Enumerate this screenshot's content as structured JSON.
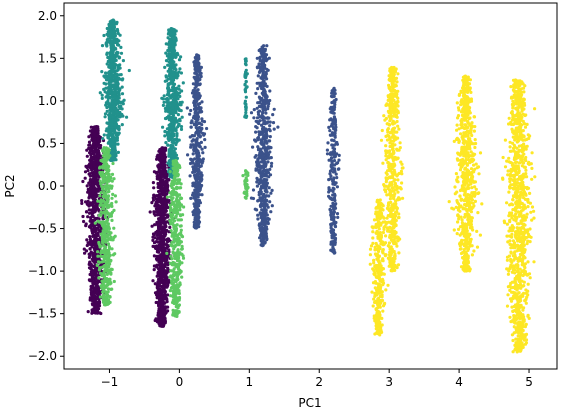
{
  "chart_data": {
    "type": "scatter",
    "title": "",
    "xlabel": "PC1",
    "ylabel": "PC2",
    "xlim": [
      -1.65,
      5.4
    ],
    "ylim": [
      -2.15,
      2.15
    ],
    "grid": false,
    "legend": "none",
    "x_ticks": [
      {
        "value": -1,
        "label": "−1"
      },
      {
        "value": 0,
        "label": "0"
      },
      {
        "value": 1,
        "label": "1"
      },
      {
        "value": 2,
        "label": "2"
      },
      {
        "value": 3,
        "label": "3"
      },
      {
        "value": 4,
        "label": "4"
      },
      {
        "value": 5,
        "label": "5"
      }
    ],
    "y_ticks": [
      {
        "value": -2.0,
        "label": "−2.0"
      },
      {
        "value": -1.5,
        "label": "−1.5"
      },
      {
        "value": -1.0,
        "label": "−1.0"
      },
      {
        "value": -0.5,
        "label": "−0.5"
      },
      {
        "value": 0.0,
        "label": "0.0"
      },
      {
        "value": 0.5,
        "label": "0.5"
      },
      {
        "value": 1.0,
        "label": "1.0"
      },
      {
        "value": 1.5,
        "label": "1.5"
      },
      {
        "value": 2.0,
        "label": "2.0"
      }
    ],
    "series": [
      {
        "color": "#440154",
        "clusters": [
          {
            "cx": -1.2,
            "ymin": -1.5,
            "ymax": 0.7,
            "halfwidth": 0.14,
            "n": 900
          },
          {
            "cx": -0.25,
            "ymin": -1.65,
            "ymax": 0.45,
            "halfwidth": 0.12,
            "n": 900
          }
        ]
      },
      {
        "color": "#3b528b",
        "clusters": [
          {
            "cx": 0.25,
            "ymin": -0.5,
            "ymax": 1.55,
            "halfwidth": 0.09,
            "n": 500
          },
          {
            "cx": 1.2,
            "ymin": -0.7,
            "ymax": 1.65,
            "halfwidth": 0.12,
            "n": 600
          },
          {
            "cx": 2.2,
            "ymin": -0.8,
            "ymax": 1.15,
            "halfwidth": 0.07,
            "n": 250
          }
        ]
      },
      {
        "color": "#21918c",
        "clusters": [
          {
            "cx": -0.95,
            "ymin": 0.3,
            "ymax": 1.95,
            "halfwidth": 0.13,
            "n": 700
          },
          {
            "cx": -0.1,
            "ymin": 0.1,
            "ymax": 1.85,
            "halfwidth": 0.11,
            "n": 650
          },
          {
            "cx": 0.95,
            "ymin": 0.75,
            "ymax": 1.5,
            "halfwidth": 0.02,
            "n": 40
          }
        ]
      },
      {
        "color": "#5ec962",
        "clusters": [
          {
            "cx": -1.05,
            "ymin": -1.4,
            "ymax": 0.45,
            "halfwidth": 0.12,
            "n": 450
          },
          {
            "cx": -0.05,
            "ymin": -1.55,
            "ymax": 0.3,
            "halfwidth": 0.1,
            "n": 400
          },
          {
            "cx": 0.95,
            "ymin": -0.15,
            "ymax": 0.2,
            "halfwidth": 0.04,
            "n": 40
          }
        ]
      },
      {
        "color": "#fde725",
        "clusters": [
          {
            "cx": 2.85,
            "ymin": -1.75,
            "ymax": -0.15,
            "halfwidth": 0.1,
            "n": 350
          },
          {
            "cx": 3.05,
            "ymin": -1.0,
            "ymax": 1.4,
            "halfwidth": 0.12,
            "n": 550
          },
          {
            "cx": 4.1,
            "ymin": -1.0,
            "ymax": 1.3,
            "halfwidth": 0.15,
            "n": 700
          },
          {
            "cx": 4.85,
            "ymin": -1.95,
            "ymax": 1.25,
            "halfwidth": 0.17,
            "n": 1000
          }
        ]
      }
    ]
  }
}
